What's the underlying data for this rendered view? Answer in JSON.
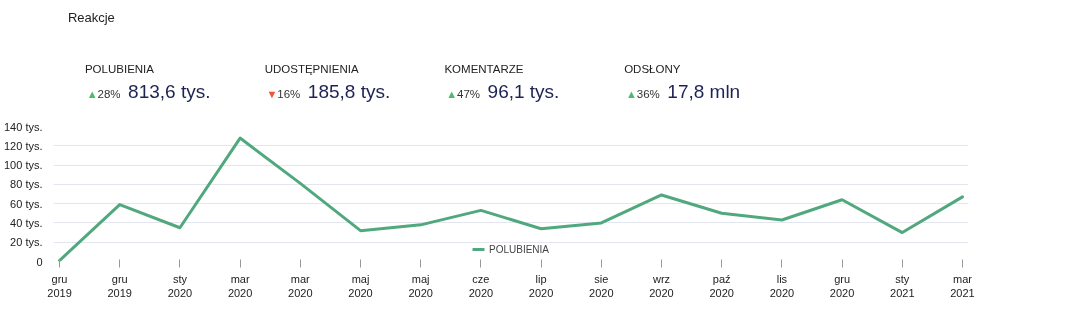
{
  "chart_data": [
    {
      "type": "other",
      "title": "Reakcje",
      "annotations": [
        "POLUBIENIA",
        "▲28%",
        "813,6 tys.",
        "UDOSTĘPNIENIA",
        "▼16%",
        "185,8 tys.",
        "KOMENTARZE",
        "▲47%",
        "96,1 tys.",
        "ODSŁONY",
        "▲36%",
        "17,8 mln"
      ],
      "colors": [
        "#4cbb6c",
        "#f0553a",
        "#4cbb6c",
        "#4cbb6c"
      ]
    },
    {
      "type": "line",
      "categories": [
        "gru\n2019",
        "gru\n2019",
        "sty\n2020",
        "mar\n2020",
        "mar\n2020",
        "maj\n2020",
        "maj\n2020",
        "cze\n2020",
        "lip\n2020",
        "sie\n2020",
        "wrz\n2020",
        "paź\n2020",
        "lis\n2020",
        "gru\n2020",
        "sty\n2021",
        "mar\n2021"
      ],
      "series": [
        {
          "name": "POLUBIENIA",
          "color": "#52a87e",
          "values": [
            1,
            59,
            35,
            128,
            81,
            32,
            38,
            53,
            34,
            40,
            69,
            50,
            43,
            64,
            30,
            67
          ]
        }
      ],
      "ylim": [
        0,
        140
      ],
      "yticks": [
        {
          "value": 0,
          "label": "0"
        },
        {
          "value": 20,
          "label": "20 tys."
        },
        {
          "value": 40,
          "label": "40 tys."
        },
        {
          "value": 60,
          "label": "60 tys."
        },
        {
          "value": 80,
          "label": "80 tys."
        },
        {
          "value": 100,
          "label": "100 tys."
        },
        {
          "value": 120,
          "label": "120 tys."
        },
        {
          "value": 140,
          "label": "140 tys."
        }
      ],
      "grid": "y",
      "legend": "bottom",
      "marker": "none"
    }
  ]
}
